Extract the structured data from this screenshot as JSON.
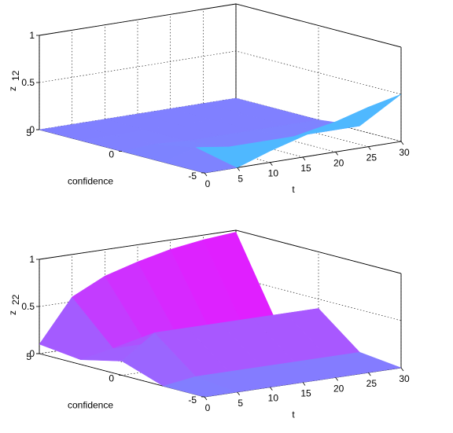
{
  "chart_data": [
    {
      "type": "surface",
      "zlabel": "z",
      "zlabel_sub": "12",
      "xlabel": "t",
      "ylabel": "confidence",
      "x_ticks": [
        "0",
        "5",
        "10",
        "15",
        "20",
        "25",
        "30"
      ],
      "y_ticks": [
        "5",
        "0",
        "-5"
      ],
      "z_ticks": [
        "0",
        "0.5",
        "1"
      ],
      "xlim": [
        0,
        30
      ],
      "ylim": [
        -5,
        5
      ],
      "zlim": [
        0,
        1
      ],
      "grid": true,
      "colors": {
        "low": "#8080ff",
        "high": "#ff00ff",
        "cyan": "#4fb8ff"
      },
      "surface_z_grid": {
        "t": [
          0,
          5,
          10,
          15,
          20,
          25,
          30
        ],
        "confidence": [
          5,
          2.5,
          0,
          -2.5,
          -5
        ],
        "z": [
          [
            0.0,
            0.0,
            0.0,
            0.0,
            0.0,
            0.0,
            0.0
          ],
          [
            0.0,
            0.0,
            0.0,
            0.0,
            0.0,
            0.0,
            0.0
          ],
          [
            0.0,
            0.02,
            0.0,
            0.0,
            0.0,
            0.0,
            0.0
          ],
          [
            0.0,
            0.1,
            0.05,
            0.05,
            0.05,
            0.05,
            0.05
          ],
          [
            0.0,
            0.0,
            0.12,
            0.22,
            0.32,
            0.42,
            0.5
          ]
        ]
      }
    },
    {
      "type": "surface",
      "zlabel": "z",
      "zlabel_sub": "22",
      "xlabel": "t",
      "ylabel": "confidence",
      "x_ticks": [
        "0",
        "5",
        "10",
        "15",
        "20",
        "25",
        "30"
      ],
      "y_ticks": [
        "5",
        "0",
        "-5"
      ],
      "z_ticks": [
        "0",
        "0.5",
        "1"
      ],
      "xlim": [
        0,
        30
      ],
      "ylim": [
        -5,
        5
      ],
      "zlim": [
        0,
        1
      ],
      "grid": true,
      "colors": {
        "low": "#8080ff",
        "high": "#ff00ff",
        "cyan": "#4fb8ff"
      },
      "surface_z_grid": {
        "t": [
          0,
          5,
          10,
          15,
          20,
          25,
          30
        ],
        "confidence": [
          5,
          2.5,
          0,
          -2.5,
          -5
        ],
        "z": [
          [
            0.1,
            0.55,
            0.72,
            0.82,
            0.9,
            0.95,
            0.98
          ],
          [
            0.05,
            0.12,
            0.12,
            0.12,
            0.12,
            0.12,
            0.12
          ],
          [
            0.15,
            0.4,
            0.4,
            0.4,
            0.4,
            0.4,
            0.4
          ],
          [
            0.0,
            0.05,
            0.05,
            0.05,
            0.05,
            0.05,
            0.05
          ],
          [
            0.0,
            0.0,
            0.0,
            0.0,
            0.0,
            0.0,
            0.0
          ]
        ]
      }
    }
  ]
}
